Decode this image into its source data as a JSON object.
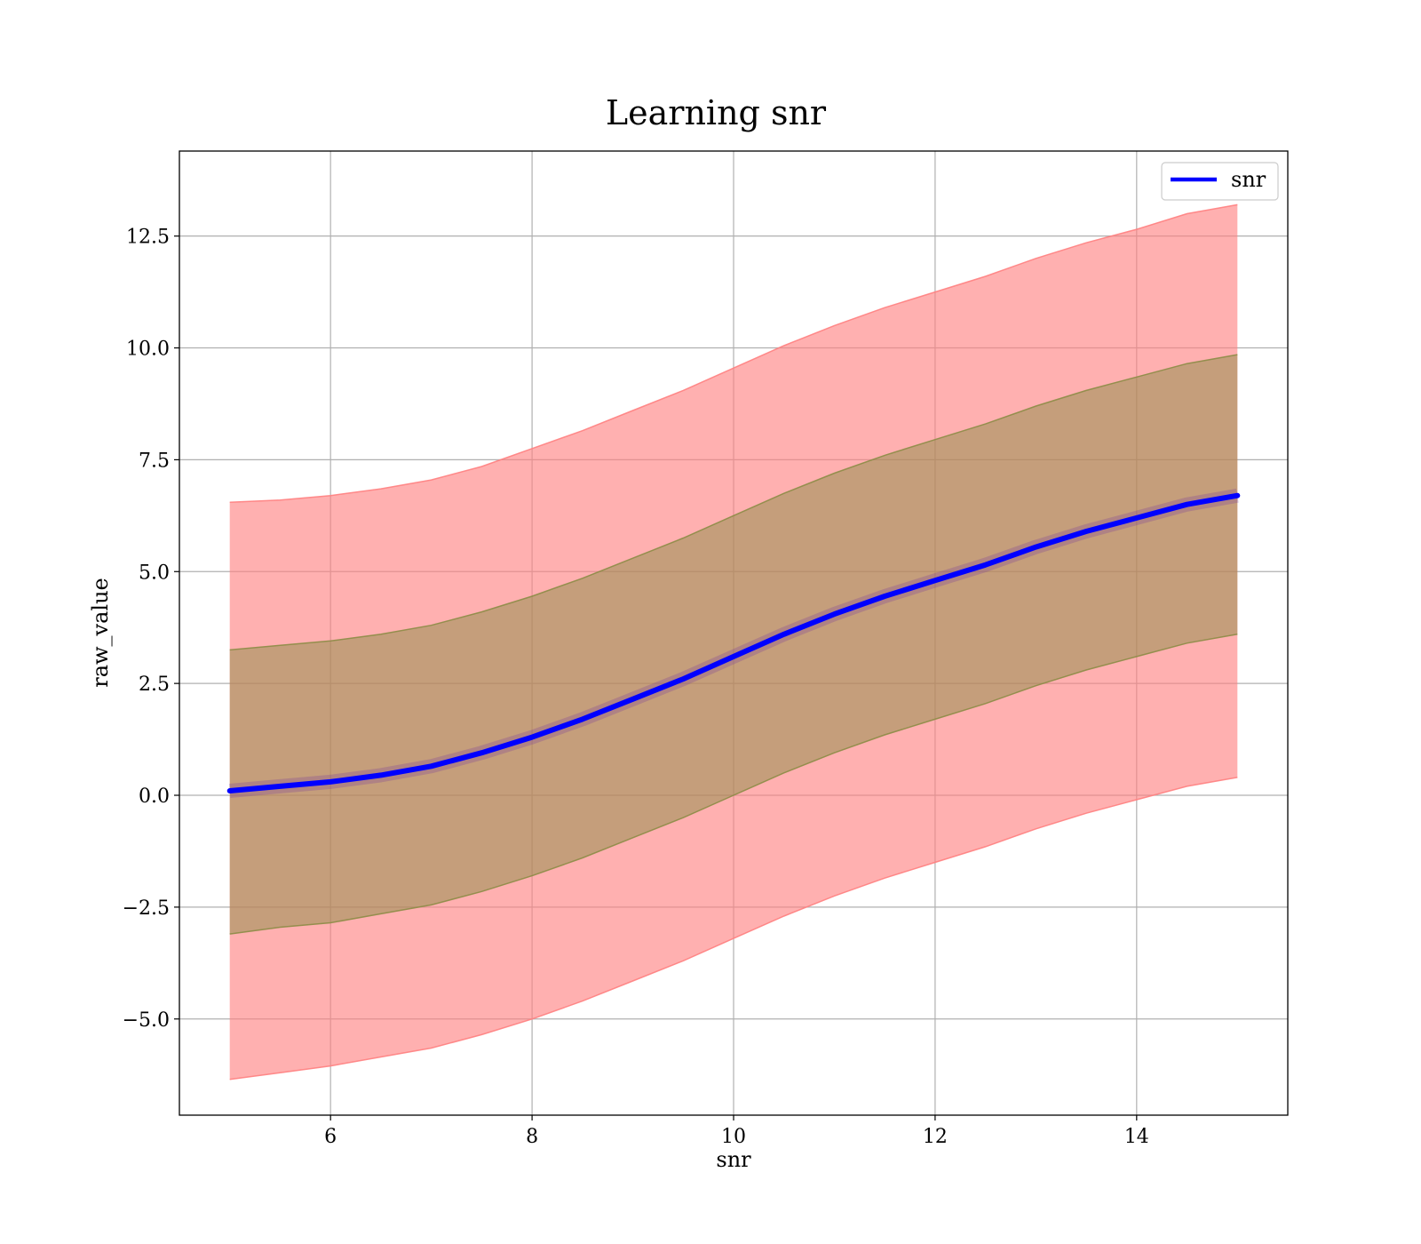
{
  "chart_data": {
    "type": "line",
    "title": "Learning snr",
    "xlabel": "snr",
    "ylabel": "raw_value",
    "xlim": [
      4.5,
      15.5
    ],
    "ylim": [
      -7.15,
      14.4
    ],
    "x_ticks": [
      6,
      8,
      10,
      12,
      14
    ],
    "x_tick_labels": [
      "6",
      "8",
      "10",
      "12",
      "14"
    ],
    "y_ticks": [
      -5.0,
      -2.5,
      0.0,
      2.5,
      5.0,
      7.5,
      10.0,
      12.5
    ],
    "y_tick_labels": [
      "−5.0",
      "−2.5",
      "0.0",
      "2.5",
      "5.0",
      "7.5",
      "10.0",
      "12.5"
    ],
    "grid": true,
    "legend_position": "top-right",
    "x": [
      5.0,
      5.5,
      6.0,
      6.5,
      7.0,
      7.5,
      8.0,
      8.5,
      9.0,
      9.5,
      10.0,
      10.5,
      11.0,
      11.5,
      12.0,
      12.5,
      13.0,
      13.5,
      14.0,
      14.5,
      15.0
    ],
    "series": [
      {
        "name": "snr",
        "color": "#0000ff",
        "values": [
          0.1,
          0.2,
          0.3,
          0.45,
          0.65,
          0.95,
          1.3,
          1.7,
          2.15,
          2.6,
          3.1,
          3.6,
          4.05,
          4.45,
          4.8,
          5.15,
          5.55,
          5.9,
          6.2,
          6.5,
          6.7
        ]
      }
    ],
    "bands": [
      {
        "color": "#ff8080",
        "lower": [
          -6.35,
          -6.2,
          -6.05,
          -5.85,
          -5.65,
          -5.35,
          -5.0,
          -4.6,
          -4.15,
          -3.7,
          -3.2,
          -2.7,
          -2.25,
          -1.85,
          -1.5,
          -1.15,
          -0.75,
          -0.4,
          -0.1,
          0.2,
          0.4
        ],
        "upper": [
          6.55,
          6.6,
          6.7,
          6.85,
          7.05,
          7.35,
          7.75,
          8.15,
          8.6,
          9.05,
          9.55,
          10.05,
          10.5,
          10.9,
          11.25,
          11.6,
          12.0,
          12.35,
          12.65,
          13.0,
          13.2
        ]
      },
      {
        "color": "#8c8c46",
        "lower": [
          -3.1,
          -2.95,
          -2.85,
          -2.65,
          -2.45,
          -2.15,
          -1.8,
          -1.4,
          -0.95,
          -0.5,
          0.0,
          0.5,
          0.95,
          1.35,
          1.7,
          2.05,
          2.45,
          2.8,
          3.1,
          3.4,
          3.6
        ],
        "upper": [
          3.25,
          3.35,
          3.45,
          3.6,
          3.8,
          4.1,
          4.45,
          4.85,
          5.3,
          5.75,
          6.25,
          6.75,
          7.2,
          7.6,
          7.95,
          8.3,
          8.7,
          9.05,
          9.35,
          9.65,
          9.85
        ]
      }
    ]
  }
}
